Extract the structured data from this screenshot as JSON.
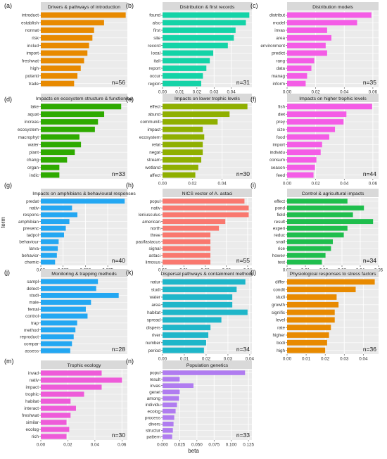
{
  "axis_labels": {
    "y": "term",
    "x": "beta"
  },
  "colors": {
    "orange": "#E88A00",
    "teal": "#14D3A7",
    "magenta": "#F45CE6",
    "green": "#2EAA00",
    "olive": "#8FAF00",
    "lime": "#1FBE4D",
    "sky": "#23A7F2",
    "salmon": "#F9786F",
    "cyan": "#1FB6C9",
    "violet": "#B07CF0",
    "pinkmag": "#EE5BD9"
  },
  "chart_data": [
    {
      "type": "bar",
      "tag": "(a)",
      "title": "Drivers & pathways of introduction",
      "n_label": "n=56",
      "color": "orange",
      "terms": [
        "introduct",
        "establish",
        "nonnat",
        "risk",
        "includ",
        "import",
        "freshwat",
        "high",
        "potenti",
        "trade"
      ],
      "values": [
        0.051,
        0.038,
        0.032,
        0.031,
        0.029,
        0.028,
        0.026,
        0.024,
        0.022,
        0.02
      ],
      "xlim": [
        0,
        0.052
      ],
      "ticks": [],
      "tick_labels": []
    },
    {
      "type": "bar",
      "tag": "(b)",
      "title": "Distribution & first records",
      "n_label": "n=31",
      "color": "teal",
      "terms": [
        "found",
        "also",
        "first",
        "site",
        "record",
        "local",
        "itali",
        "report",
        "occur",
        "region"
      ],
      "values": [
        0.0505,
        0.0485,
        0.0425,
        0.0415,
        0.038,
        0.0295,
        0.0275,
        0.0255,
        0.0235,
        0.0225
      ],
      "xlim": [
        0,
        0.052
      ],
      "ticks": [
        0,
        0.01,
        0.02,
        0.03,
        0.04
      ],
      "tick_labels": [
        "0.00",
        "0.01",
        "0.02",
        "0.03",
        "0.04"
      ]
    },
    {
      "type": "bar",
      "tag": "(c)",
      "title": "Distribution models",
      "n_label": "n=35",
      "color": "magenta",
      "terms": [
        "distribut",
        "model",
        "invas",
        "area",
        "environment",
        "predict",
        "rang",
        "data",
        "manag",
        "inform"
      ],
      "values": [
        0.059,
        0.049,
        0.028,
        0.031,
        0.027,
        0.028,
        0.019,
        0.017,
        0.014,
        0.013
      ],
      "xlim": [
        0,
        0.064
      ],
      "ticks": [
        0,
        0.02,
        0.04,
        0.06
      ],
      "tick_labels": [
        "0.00",
        "0.02",
        "0.04",
        "0.06"
      ]
    },
    {
      "type": "bar",
      "tag": "(d)",
      "title": "Impacts on ecosystem structure & functioning",
      "n_label": "n=33",
      "color": "green",
      "terms": [
        "lake",
        "aquat",
        "increas",
        "ecosystem",
        "macrophyt",
        "water",
        "plant",
        "chang",
        "organ",
        "indic"
      ],
      "values": [
        0.052,
        0.041,
        0.037,
        0.035,
        0.025,
        0.026,
        0.022,
        0.017,
        0.012,
        0.012
      ],
      "xlim": [
        0,
        0.056
      ],
      "ticks": [],
      "tick_labels": []
    },
    {
      "type": "bar",
      "tag": "(e)",
      "title": "Impacts on lower trophic levels",
      "n_label": "n=30",
      "color": "olive",
      "terms": [
        "effect",
        "abund",
        "communiti",
        "impact",
        "ecosystem",
        "relat",
        "negat",
        "stream",
        "wetland",
        "affect"
      ],
      "values": [
        0.057,
        0.045,
        0.037,
        0.027,
        0.028,
        0.027,
        0.027,
        0.026,
        0.024,
        0.022
      ],
      "xlim": [
        0,
        0.06
      ],
      "ticks": [
        0,
        0.02,
        0.04
      ],
      "tick_labels": [
        "0.00",
        "0.02",
        "0.04"
      ]
    },
    {
      "type": "bar",
      "tag": "(f)",
      "title": "Impacts on higher trophic levels",
      "n_label": "n=44",
      "color": "magenta",
      "terms": [
        "fish",
        "diet",
        "prey",
        "size",
        "food",
        "import",
        "individu",
        "consum",
        "season",
        "feed"
      ],
      "values": [
        0.0595,
        0.0415,
        0.0395,
        0.0335,
        0.0295,
        0.0245,
        0.0235,
        0.0205,
        0.0195,
        0.0185
      ],
      "xlim": [
        0,
        0.064
      ],
      "ticks": [
        0,
        0.02,
        0.04,
        0.06
      ],
      "tick_labels": [
        "0.00",
        "0.02",
        "0.04",
        "0.06"
      ]
    },
    {
      "type": "bar",
      "tag": "(g)",
      "title": "Impacts on amphibians & behavioural responses",
      "n_label": "n=40",
      "color": "sky",
      "terms": [
        "predat",
        "nativ",
        "respons",
        "amphibian",
        "presenc",
        "tadpol",
        "behaviour",
        "larva",
        "behavior",
        "chemic"
      ],
      "values": [
        0.094,
        0.035,
        0.041,
        0.032,
        0.028,
        0.026,
        0.02,
        0.019,
        0.018,
        0.016
      ],
      "xlim": [
        0,
        0.097
      ],
      "ticks": [
        0,
        0.025,
        0.05,
        0.075
      ],
      "tick_labels": [
        "0.00",
        "0.025",
        "0.050",
        "0.075"
      ]
    },
    {
      "type": "bar",
      "tag": "(h)",
      "title": "NICS vector of A. astaci",
      "n_label": "n=55",
      "color": "salmon",
      "terms": [
        "popul",
        "nativ",
        "leniusculus",
        "american",
        "north",
        "three",
        "pacifastacus",
        "signal",
        "astaci",
        "limosus"
      ],
      "values": [
        0.0385,
        0.0405,
        0.0405,
        0.0295,
        0.0265,
        0.0225,
        0.0225,
        0.0225,
        0.0225,
        0.0225
      ],
      "xlim": [
        0,
        0.042
      ],
      "ticks": [
        0,
        0.01,
        0.02,
        0.03,
        0.04
      ],
      "tick_labels": [
        "0.00",
        "0.01",
        "0.02",
        "0.03",
        "0.04"
      ]
    },
    {
      "type": "bar",
      "tag": "(i)",
      "title": "Control & agricultural impacts",
      "n_label": "n=34",
      "color": "lime",
      "terms": [
        "effect",
        "pond",
        "field",
        "result",
        "experi",
        "reduc",
        "snail",
        "rice",
        "howev",
        "test"
      ],
      "values": [
        0.033,
        0.042,
        0.036,
        0.047,
        0.033,
        0.031,
        0.025,
        0.024,
        0.021,
        0.019
      ],
      "xlim": [
        0,
        0.05
      ],
      "ticks": [
        0,
        0.01,
        0.02,
        0.03,
        0.04,
        0.05
      ],
      "tick_labels": [
        "0.00",
        "0.01",
        "0.02",
        "0.03",
        "0.04",
        "0.05"
      ]
    },
    {
      "type": "bar",
      "tag": "(j)",
      "title": "Monitoring & trapping methods",
      "n_label": "n=28",
      "color": "sky",
      "terms": [
        "sampl",
        "detect",
        "studi",
        "male",
        "femal",
        "control",
        "trap",
        "method",
        "reproduct",
        "compar",
        "assess"
      ],
      "values": [
        0.033,
        0.032,
        0.045,
        0.029,
        0.026,
        0.027,
        0.021,
        0.02,
        0.019,
        0.018,
        0.017
      ],
      "xlim": [
        0,
        0.05
      ],
      "ticks": [],
      "tick_labels": []
    },
    {
      "type": "bar",
      "tag": "(k)",
      "title": "Dispersal pathways & containment methods",
      "n_label": "n=34",
      "color": "cyan",
      "terms": [
        "natur",
        "studi",
        "water",
        "area",
        "habitat",
        "spread",
        "dispers",
        "river",
        "number",
        "period"
      ],
      "values": [
        0.038,
        0.034,
        0.032,
        0.032,
        0.039,
        0.027,
        0.022,
        0.021,
        0.02,
        0.019
      ],
      "xlim": [
        0,
        0.041
      ],
      "ticks": [
        0,
        0.01,
        0.02,
        0.03,
        0.04
      ],
      "tick_labels": [
        "0.00",
        "0.01",
        "0.02",
        "0.03",
        "0.04"
      ]
    },
    {
      "type": "bar",
      "tag": "(l)",
      "title": "Physiological responses to stress factors",
      "n_label": "n=36",
      "color": "orange",
      "terms": [
        "differ",
        "condit",
        "studi",
        "growth",
        "signific",
        "level",
        "rate",
        "higher",
        "bodi",
        "high"
      ],
      "values": [
        0.046,
        0.036,
        0.026,
        0.027,
        0.025,
        0.025,
        0.023,
        0.022,
        0.021,
        0.02
      ],
      "xlim": [
        0,
        0.048
      ],
      "ticks": [
        0,
        0.01,
        0.02,
        0.03,
        0.04
      ],
      "tick_labels": [
        "0.00",
        "0.01",
        "0.02",
        "0.03",
        "0.04"
      ]
    },
    {
      "type": "bar",
      "tag": "(m)",
      "title": "Trophic ecology",
      "n_label": "n=30",
      "color": "pinkmag",
      "terms": [
        "invad",
        "nativ",
        "impact",
        "trophic",
        "habitat",
        "interact",
        "freshwat",
        "similar",
        "ecolog",
        "rich"
      ],
      "values": [
        0.045,
        0.06,
        0.045,
        0.032,
        0.022,
        0.026,
        0.022,
        0.019,
        0.021,
        0.019
      ],
      "xlim": [
        0,
        0.064
      ],
      "ticks": [
        0,
        0.02,
        0.04,
        0.06
      ],
      "tick_labels": [
        "0.00",
        "0.02",
        "0.04",
        "0.06"
      ]
    },
    {
      "type": "bar",
      "tag": "(n)",
      "title": "Population genetics",
      "n_label": "n=33",
      "color": "violet",
      "terms": [
        "popul",
        "result",
        "invas",
        "genet",
        "among",
        "individu",
        "ecolog",
        "process",
        "divers",
        "structur",
        "pattern"
      ],
      "values": [
        0.12,
        0.025,
        0.045,
        0.025,
        0.024,
        0.021,
        0.019,
        0.017,
        0.016,
        0.015,
        0.014
      ],
      "xlim": [
        0,
        0.13
      ],
      "ticks": [
        0,
        0.025,
        0.05,
        0.075,
        0.1,
        0.125
      ],
      "tick_labels": [
        "0.000",
        "0.025",
        "0.050",
        "0.075",
        "0.100",
        "0.125"
      ]
    }
  ]
}
